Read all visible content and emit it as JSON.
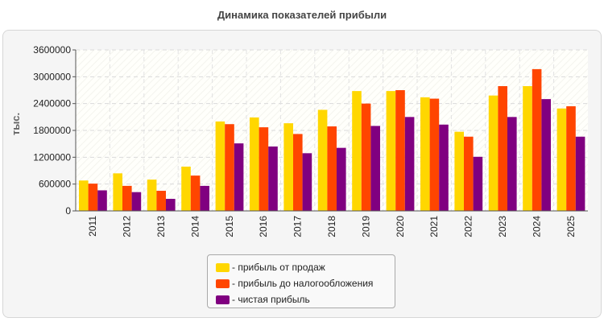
{
  "chart_data": {
    "type": "bar",
    "title": "Динамика показателей прибыли",
    "ylabel": "тыс.",
    "xlabel": "",
    "categories": [
      "2011",
      "2012",
      "2013",
      "2014",
      "2015",
      "2016",
      "2017",
      "2018",
      "2019",
      "2020",
      "2021",
      "2022",
      "2023",
      "2024",
      "2025"
    ],
    "ylim": [
      0,
      3600000
    ],
    "yticks": [
      "0",
      "600000",
      "1200000",
      "1800000",
      "2400000",
      "3000000",
      "3600000"
    ],
    "grid": true,
    "legend_position": "bottom-center",
    "series": [
      {
        "name": "- прибыль от продаж",
        "color": "#ffd700",
        "values": [
          680000,
          840000,
          700000,
          990000,
          2000000,
          2090000,
          1960000,
          2260000,
          2680000,
          2680000,
          2540000,
          1770000,
          2580000,
          2790000,
          2290000
        ]
      },
      {
        "name": "- прибыль до налогообложения",
        "color": "#ff4500",
        "values": [
          610000,
          560000,
          450000,
          790000,
          1940000,
          1870000,
          1720000,
          1890000,
          2400000,
          2700000,
          2510000,
          1660000,
          2790000,
          3170000,
          2340000
        ]
      },
      {
        "name": "- чистая прибыль",
        "color": "#800080",
        "values": [
          460000,
          420000,
          270000,
          560000,
          1510000,
          1440000,
          1290000,
          1410000,
          1900000,
          2100000,
          1930000,
          1210000,
          2100000,
          2500000,
          1660000
        ]
      }
    ]
  }
}
